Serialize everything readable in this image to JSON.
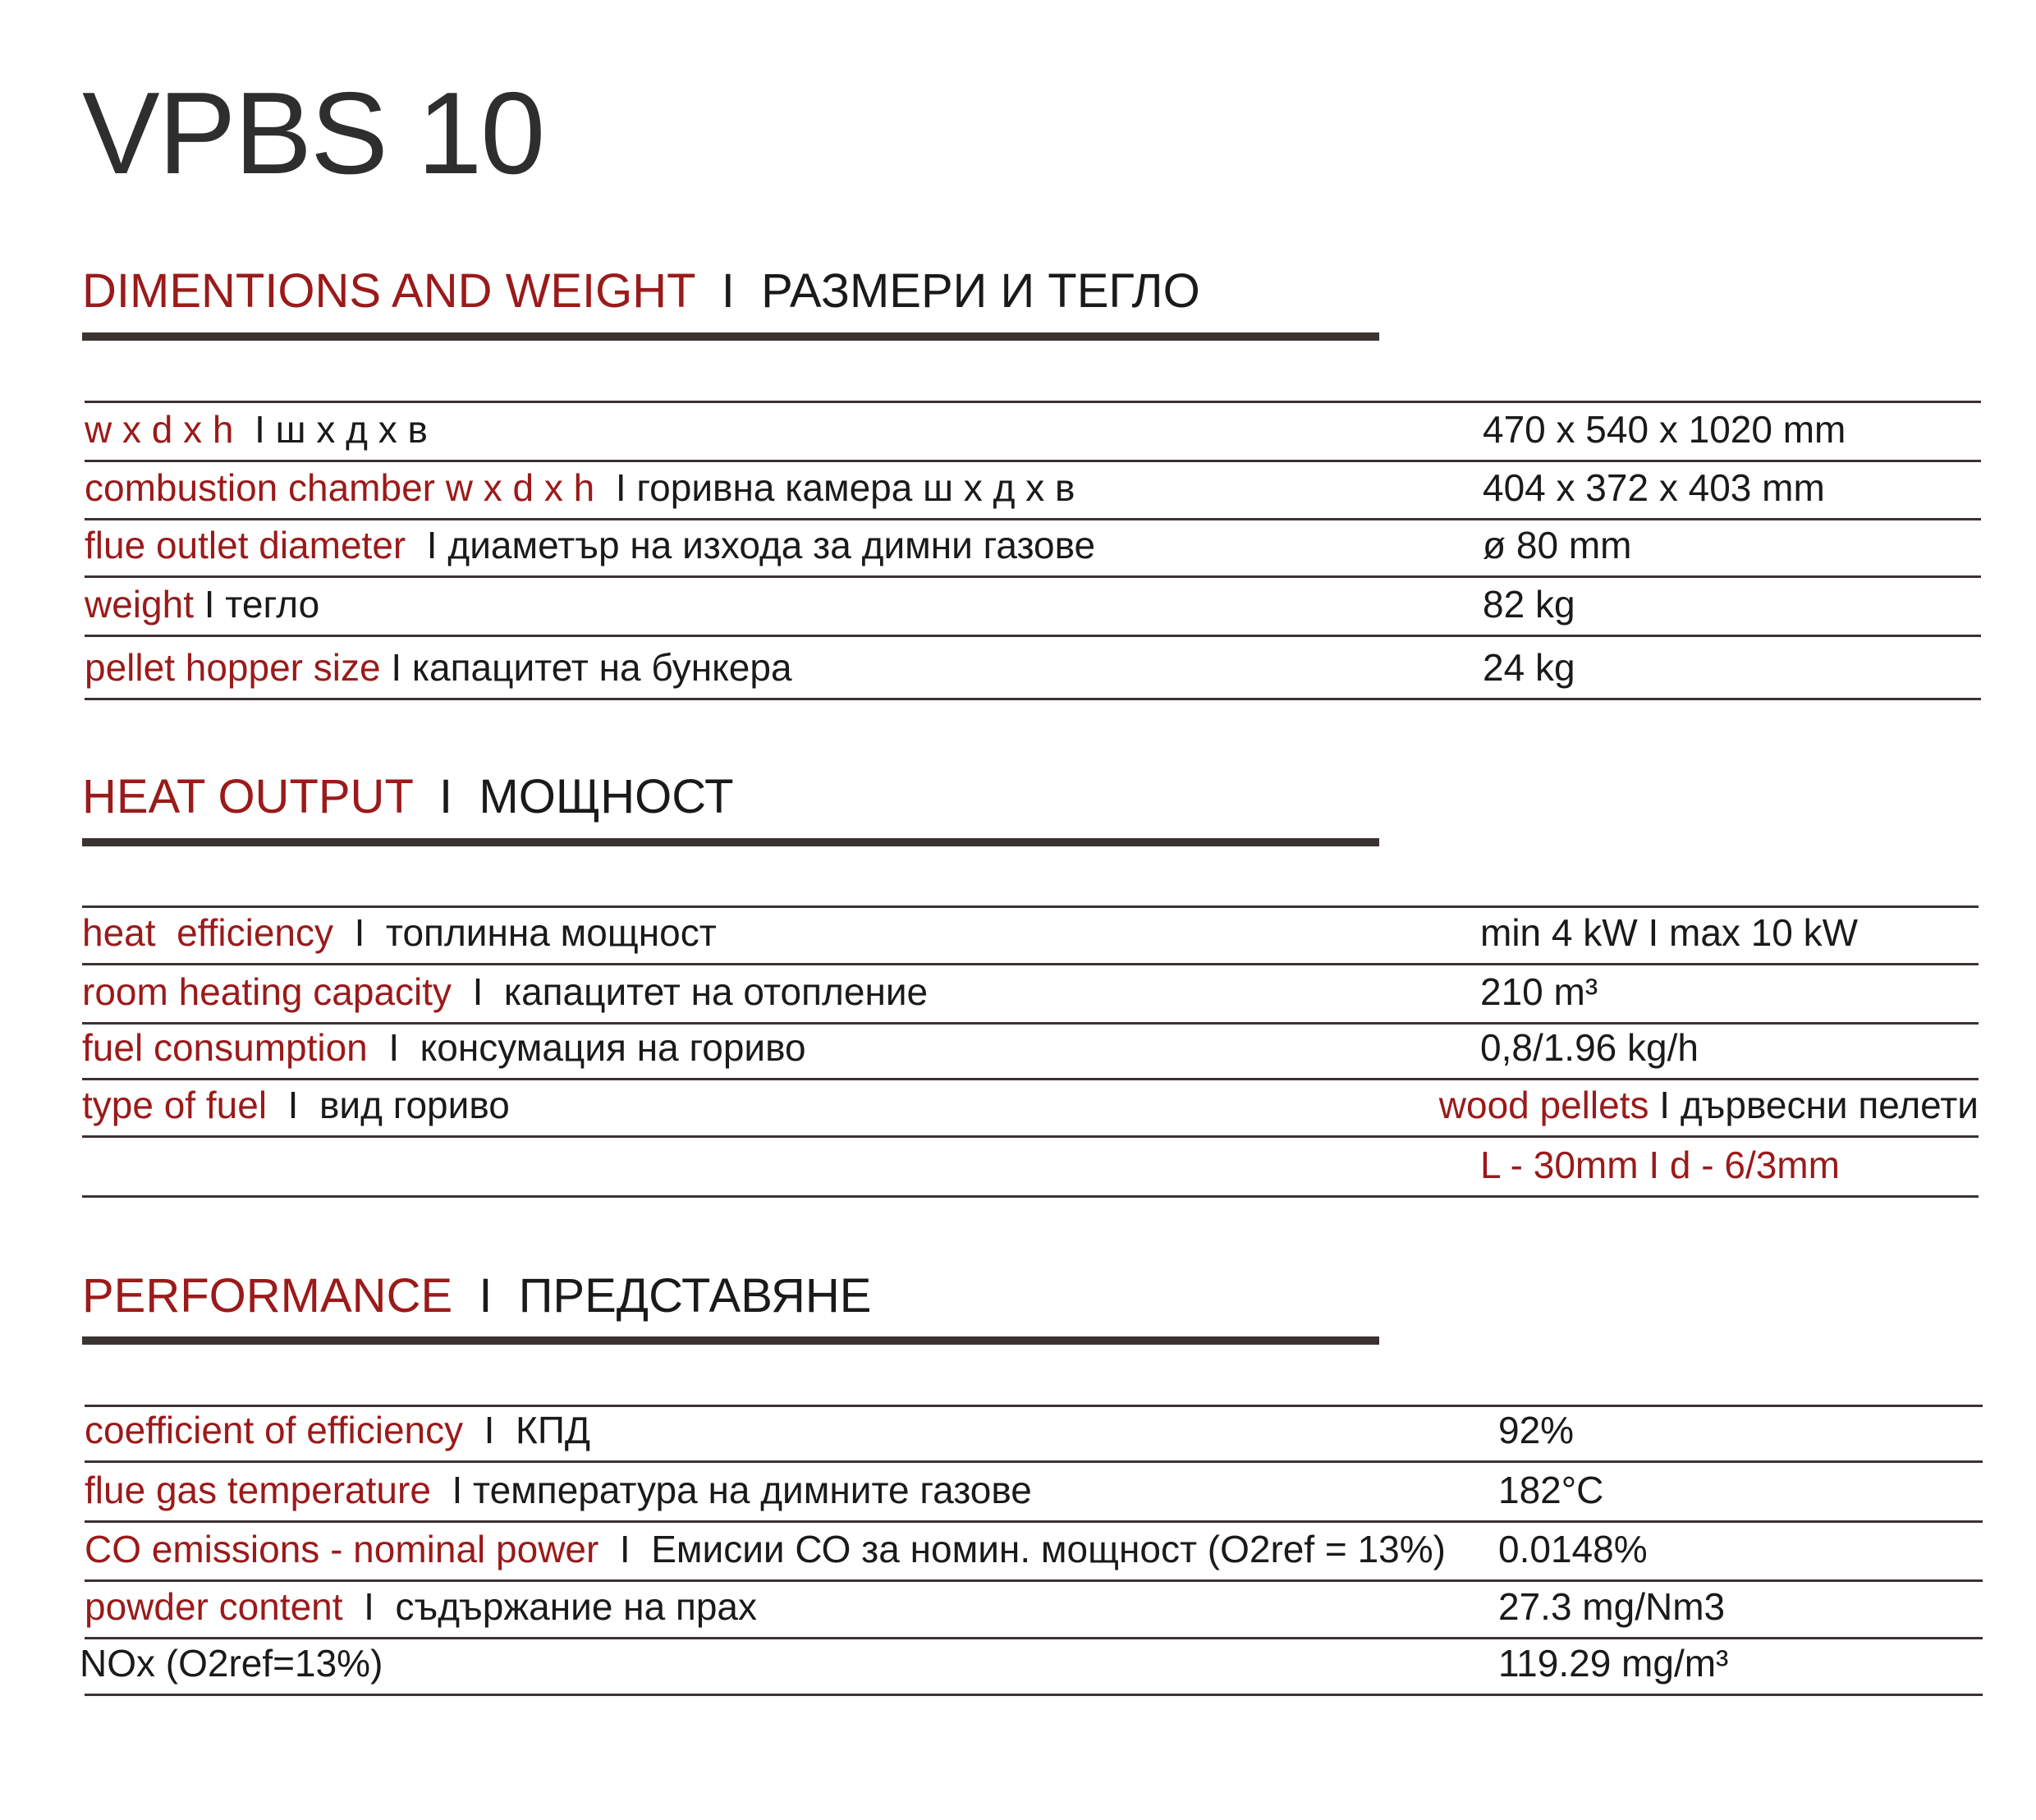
{
  "title": "VPBS 10",
  "colors": {
    "accent": "#9b1a1a",
    "text": "#1a1a1a",
    "rule": "#3a3331"
  },
  "sections": [
    {
      "heading_en": "DIMENTIONS AND WEIGHT",
      "heading_bg": "  I  РАЗМЕРИ И ТЕГЛО",
      "rows": [
        {
          "en": "w x d x h",
          "bg": "  I ш x д x в",
          "value": "470 x 540 x 1020 mm"
        },
        {
          "en": "combustion chamber w x d x h",
          "bg": "  I горивна камера ш x д x в",
          "value": "404 x 372 x 403 mm"
        },
        {
          "en": "flue outlet diameter",
          "bg": "  I диаметър на изхода за димни газове",
          "value": "ø 80 mm"
        },
        {
          "en": "weight",
          "bg": " I тегло",
          "value": "82 kg"
        },
        {
          "en": "pellet hopper size",
          "bg": " I капацитет на бункера",
          "value": "24 kg"
        }
      ]
    },
    {
      "heading_en": "HEAT OUTPUT",
      "heading_bg": "  I  МОЩНОСТ",
      "rows": [
        {
          "en": "heat  efficiency",
          "bg": "  I  топлинна мощност",
          "value": "min 4 kW I max 10 kW"
        },
        {
          "en": "room heating capacity",
          "bg": "  I  капацитет на отопление",
          "value": "210 m³"
        },
        {
          "en": "fuel consumption",
          "bg": "  I  консумация на гориво",
          "value": "0,8/1.96 kg/h"
        },
        {
          "en": "type of fuel",
          "bg": "  I  вид гориво",
          "value_red": "wood pellets",
          "value": " I дървесни пелети",
          "align": "right"
        },
        {
          "en": "",
          "bg": "",
          "value_red": "L - 30mm I d - 6/3mm",
          "value": ""
        }
      ]
    },
    {
      "heading_en": "PERFORMANCE",
      "heading_bg": "  I  ПРЕДСТАВЯНЕ",
      "rows": [
        {
          "en": "coefficient of efficiency",
          "bg": "  I  КПД",
          "value": "92%"
        },
        {
          "en": "flue gas temperature",
          "bg": "  I температура на димните газове",
          "value": "182°C"
        },
        {
          "en": "CO emissions - nominal power",
          "bg": "  I  Емисии СО за номин. мощност (O2ref = 13%)",
          "value": "0.0148%"
        },
        {
          "en": "powder content",
          "bg": "  I  съдържание на прах",
          "value": "27.3 mg/Nm3"
        },
        {
          "en": "",
          "bg": "NOx (O2ref=13%)",
          "value": "119.29 mg/m³"
        }
      ]
    }
  ]
}
